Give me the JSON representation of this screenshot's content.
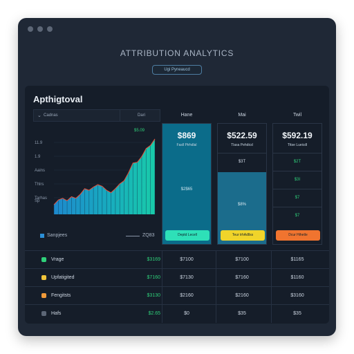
{
  "app": {
    "title": "ATTRIBUTION ANALYTICS",
    "pill": "Ugi Pyneaucd"
  },
  "panel": {
    "title": "Apthigtoval",
    "chart_header": {
      "left": "Cadnas",
      "right": "Dari"
    },
    "legend": {
      "series": "Sanpjees",
      "value": "ZQ83"
    }
  },
  "columns": [
    {
      "header": "Hane",
      "big": "$869",
      "sub": "Fasll Ptrhdlal",
      "mid": "$2$65",
      "button": "Deptd Lecell",
      "fill": "#0a6a86",
      "button_color": "#2ee0b8"
    },
    {
      "header": "Mai",
      "big": "$522.59",
      "sub": "Tlasa Pehdicd",
      "mid": "$8%",
      "row1": "$3T",
      "button": "Teur trhAdllss",
      "fill": "#1b6c8c",
      "button_color": "#f0d42a"
    },
    {
      "header": "Twil",
      "big": "$592.19",
      "sub": "Tttse Lueicdl",
      "row1": "$2T",
      "row2": "$3I",
      "row3": "$7",
      "row4": "$7",
      "button": "Dcur Hihetle",
      "fill": "#1a2433",
      "button_color": "#f0742f"
    }
  ],
  "table": [
    {
      "name": "Vrage",
      "v0": "$3169",
      "v1": "$7100",
      "v2": "$7100",
      "v3": "$1165",
      "icon_color": "#2fd07a"
    },
    {
      "name": "Upfatigited",
      "v0": "$7160",
      "v1": "$7130",
      "v2": "$7160",
      "v3": "$1160",
      "icon_color": "#f0c43a"
    },
    {
      "name": "Fengitsts",
      "v0": "$3130",
      "v1": "$2160",
      "v2": "$2160",
      "v3": "$3160",
      "icon_color": "#f09a3a"
    },
    {
      "name": "Hafs",
      "v0": "$2.65",
      "v1": "$0",
      "v2": "$35",
      "v3": "$35",
      "icon_color": "#5c6676"
    }
  ],
  "chart_data": {
    "type": "area",
    "x": [
      1,
      2,
      3,
      4,
      5,
      6,
      7,
      8,
      9,
      10,
      11,
      12,
      13,
      14,
      15,
      16,
      17,
      18,
      19,
      20,
      21,
      22,
      23,
      24
    ],
    "values": [
      12,
      18,
      20,
      17,
      22,
      20,
      25,
      32,
      30,
      34,
      37,
      35,
      30,
      27,
      32,
      38,
      42,
      52,
      64,
      65,
      72,
      82,
      86,
      94
    ],
    "ylim": [
      0,
      100
    ],
    "ytick_labels": [
      "11.9",
      "1.9",
      "Aains",
      "Thlrs",
      "Tarhas"
    ],
    "top_label": "$5.09",
    "annotation": "Sp"
  }
}
